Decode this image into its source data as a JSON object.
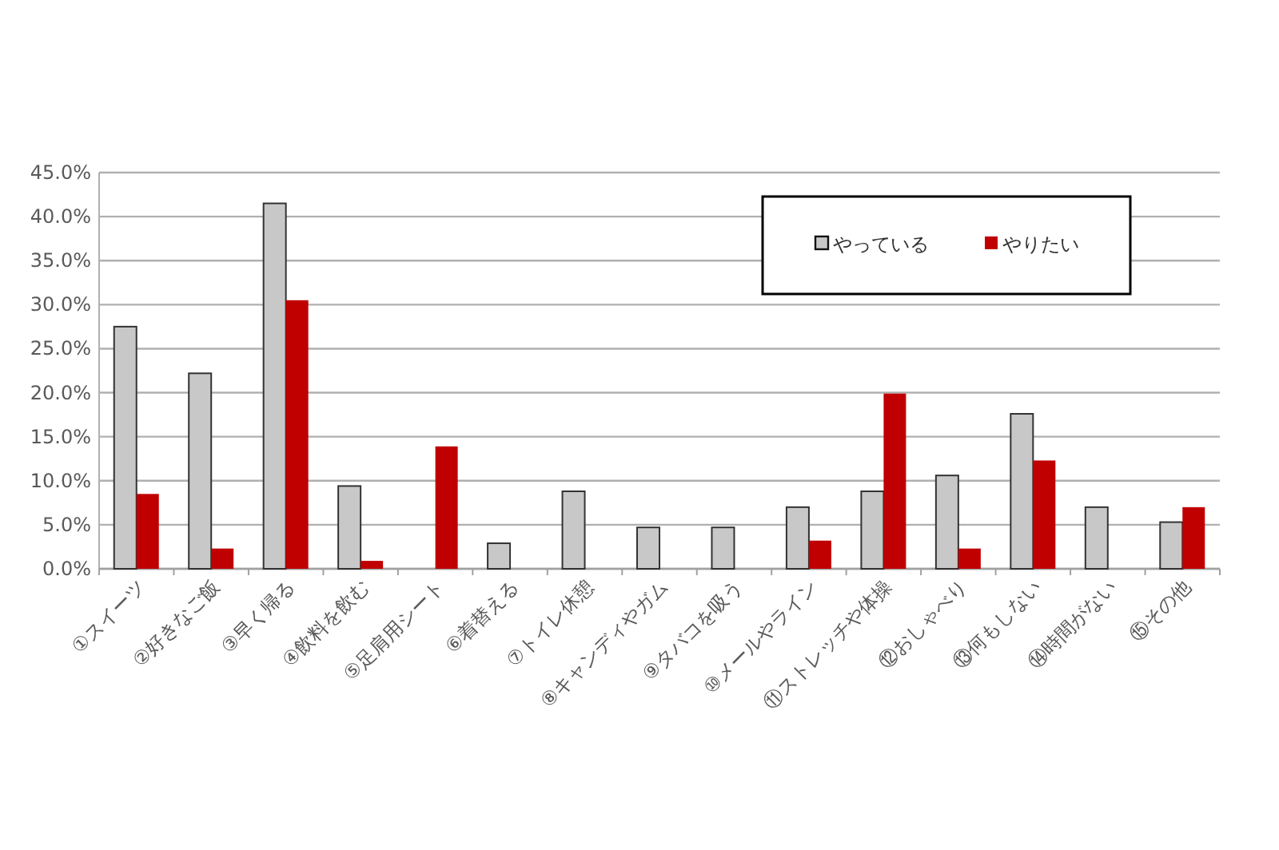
{
  "chart_data": {
    "type": "bar",
    "categories": [
      "①スイーツ",
      "②好きなご飯",
      "③早く帰る",
      "④飲料を飲む",
      "⑤足肩用シート",
      "⑥着替える",
      "⑦トイレ休憩",
      "⑧キャンディやガム",
      "⑨タバコを吸う",
      "⑩メールやライン",
      "⑪ストレッチや体操",
      "⑫おしゃべり",
      "⑬何もしない",
      "⑭時間がない",
      "⑮その他"
    ],
    "series": [
      {
        "name": "やっている",
        "color": "#c8c8c8",
        "values": [
          27.5,
          22.2,
          41.5,
          9.4,
          0,
          2.9,
          8.8,
          4.7,
          4.7,
          7.0,
          8.8,
          10.6,
          17.6,
          7.0,
          5.3
        ]
      },
      {
        "name": "やりたい",
        "color": "#c00000",
        "values": [
          8.5,
          2.3,
          30.5,
          0.9,
          13.9,
          0,
          0,
          0,
          0,
          3.2,
          19.9,
          2.3,
          12.3,
          0,
          7.0
        ]
      }
    ],
    "ylim": [
      0,
      45
    ],
    "yticks": [
      {
        "value": 0,
        "label": "0.0%"
      },
      {
        "value": 5,
        "label": "5.0%"
      },
      {
        "value": 10,
        "label": "10.0%"
      },
      {
        "value": 15,
        "label": "15.0%"
      },
      {
        "value": 20,
        "label": "20.0%"
      },
      {
        "value": 25,
        "label": "25.0%"
      },
      {
        "value": 30,
        "label": "30.0%"
      },
      {
        "value": 35,
        "label": "35.0%"
      },
      {
        "value": 40,
        "label": "40.0%"
      },
      {
        "value": 45,
        "label": "45.0%"
      }
    ],
    "grid": "y",
    "legend": "top right"
  }
}
